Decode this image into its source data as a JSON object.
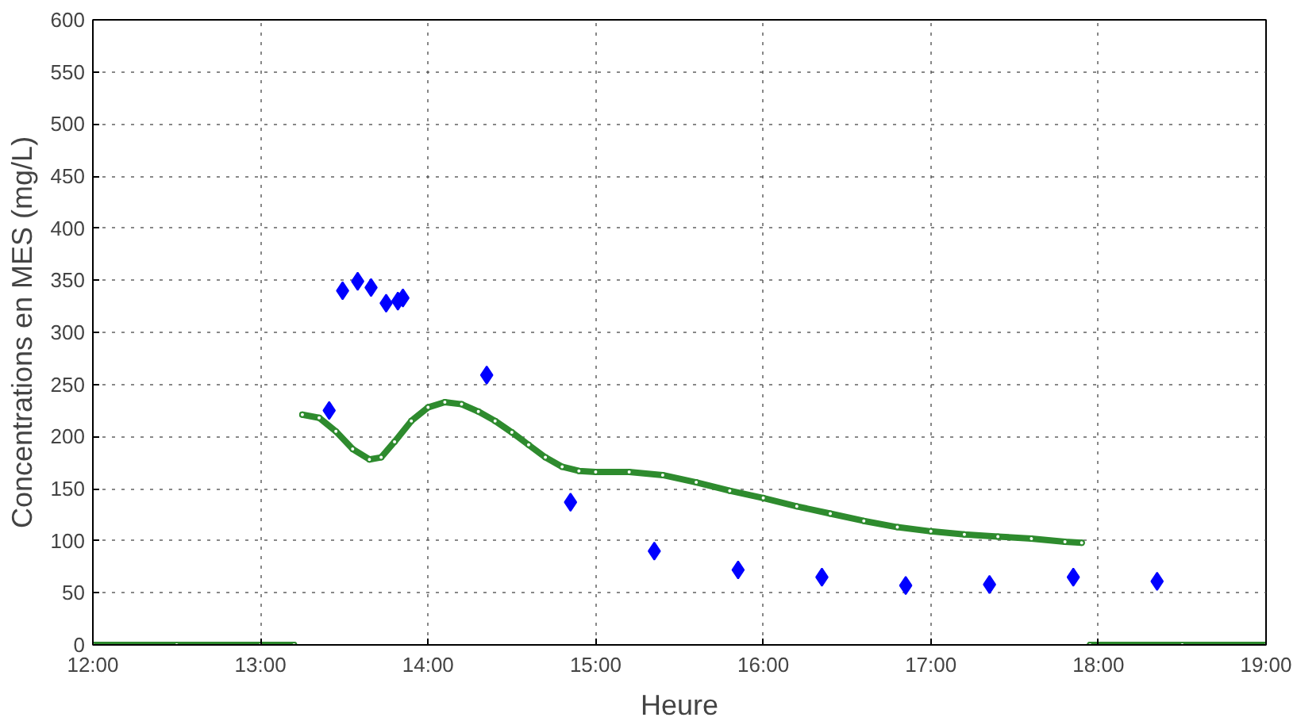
{
  "chart_data": {
    "type": "line",
    "xlabel": "Heure",
    "ylabel": "Concentrations en MES (mg/L)",
    "xlim": [
      12,
      19
    ],
    "ylim": [
      0,
      600
    ],
    "xticks": [
      {
        "value": 12,
        "label": "12:00"
      },
      {
        "value": 13,
        "label": "13:00"
      },
      {
        "value": 14,
        "label": "14:00"
      },
      {
        "value": 15,
        "label": "15:00"
      },
      {
        "value": 16,
        "label": "16:00"
      },
      {
        "value": 17,
        "label": "17:00"
      },
      {
        "value": 18,
        "label": "18:00"
      },
      {
        "value": 19,
        "label": "19:00"
      }
    ],
    "yticks": [
      0,
      50,
      100,
      150,
      200,
      250,
      300,
      350,
      400,
      450,
      500,
      550,
      600
    ],
    "grid": true,
    "series": [
      {
        "color": "#2e8b2e",
        "marker": "circle",
        "x": [
          12.0,
          12.5,
          13.0,
          13.2,
          13.22,
          13.25,
          13.35,
          13.45,
          13.55,
          13.65,
          13.72,
          13.8,
          13.9,
          14.0,
          14.1,
          14.2,
          14.3,
          14.4,
          14.5,
          14.6,
          14.7,
          14.8,
          14.9,
          15.0,
          15.2,
          15.4,
          15.6,
          15.8,
          16.0,
          16.2,
          16.4,
          16.6,
          16.8,
          17.0,
          17.2,
          17.4,
          17.6,
          17.8,
          17.9,
          17.92,
          17.95,
          18.5,
          19.0
        ],
        "values": [
          0,
          0,
          0,
          0,
          null,
          221,
          218,
          205,
          188,
          178,
          180,
          195,
          215,
          228,
          233,
          231,
          224,
          215,
          204,
          192,
          180,
          171,
          167,
          166,
          166,
          163,
          156,
          148,
          141,
          133,
          126,
          119,
          113,
          109,
          106,
          104,
          102,
          99,
          98,
          null,
          0,
          0,
          0
        ]
      },
      {
        "type": "scatter",
        "color": "#0000ff",
        "marker": "diamond",
        "x": [
          13.41,
          13.49,
          13.58,
          13.66,
          13.75,
          13.82,
          13.85,
          14.35,
          14.85,
          15.35,
          15.85,
          16.35,
          16.85,
          17.35,
          17.85,
          18.35
        ],
        "values": [
          225,
          340,
          349,
          343,
          328,
          330,
          333,
          259,
          137,
          90,
          72,
          65,
          57,
          58,
          65,
          61
        ]
      }
    ]
  }
}
